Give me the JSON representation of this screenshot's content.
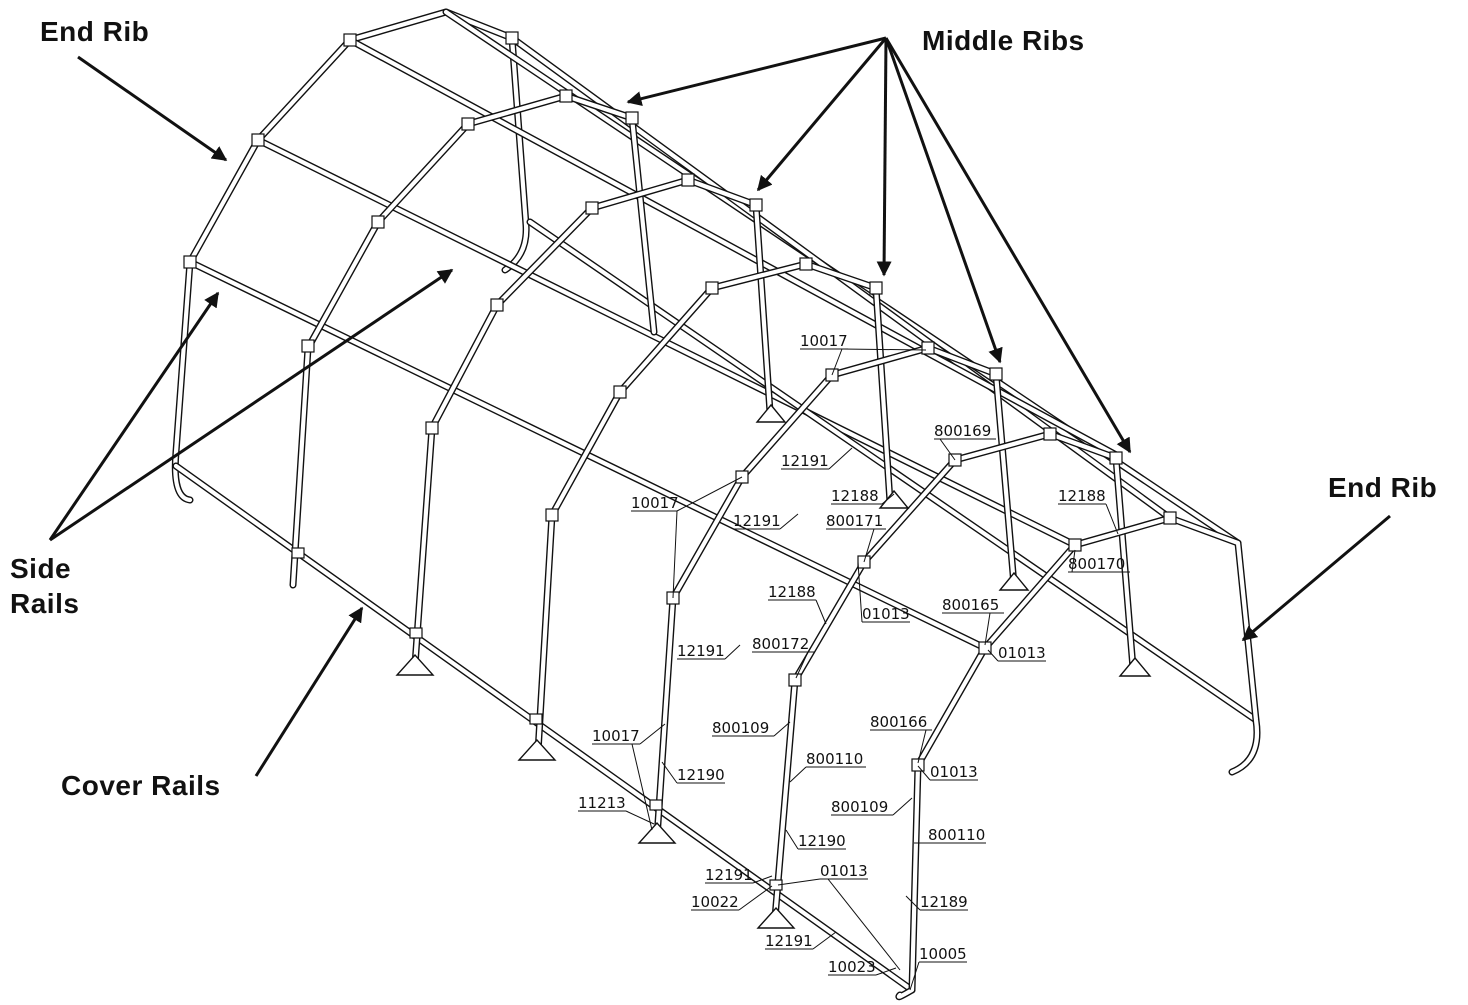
{
  "callouts": {
    "end_rib_left": "End Rib",
    "end_rib_right": "End Rib",
    "middle_ribs": "Middle Ribs",
    "side_rails_line1": "Side",
    "side_rails_line2": "Rails",
    "cover_rails": "Cover Rails"
  },
  "parts": {
    "p_10017_a": "10017",
    "p_12191_a": "12191",
    "p_10017_b": "10017",
    "p_12191_b": "12191",
    "p_800169": "800169",
    "p_12188_a": "12188",
    "p_800171": "800171",
    "p_12188_b": "12188",
    "p_800170": "800170",
    "p_01013_a": "01013",
    "p_12188_c": "12188",
    "p_800165": "800165",
    "p_01013_b": "01013",
    "p_12191_c": "12191",
    "p_800172": "800172",
    "p_800109_a": "800109",
    "p_800166": "800166",
    "p_10017_c": "10017",
    "p_800110_a": "800110",
    "p_01013_c": "01013",
    "p_12190_a": "12190",
    "p_800109_b": "800109",
    "p_11213": "11213",
    "p_12190_b": "12190",
    "p_800110_b": "800110",
    "p_12191_d": "12191",
    "p_01013_d": "01013",
    "p_10022": "10022",
    "p_12189": "12189",
    "p_12191_e": "12191",
    "p_10005": "10005",
    "p_10023": "10023"
  }
}
